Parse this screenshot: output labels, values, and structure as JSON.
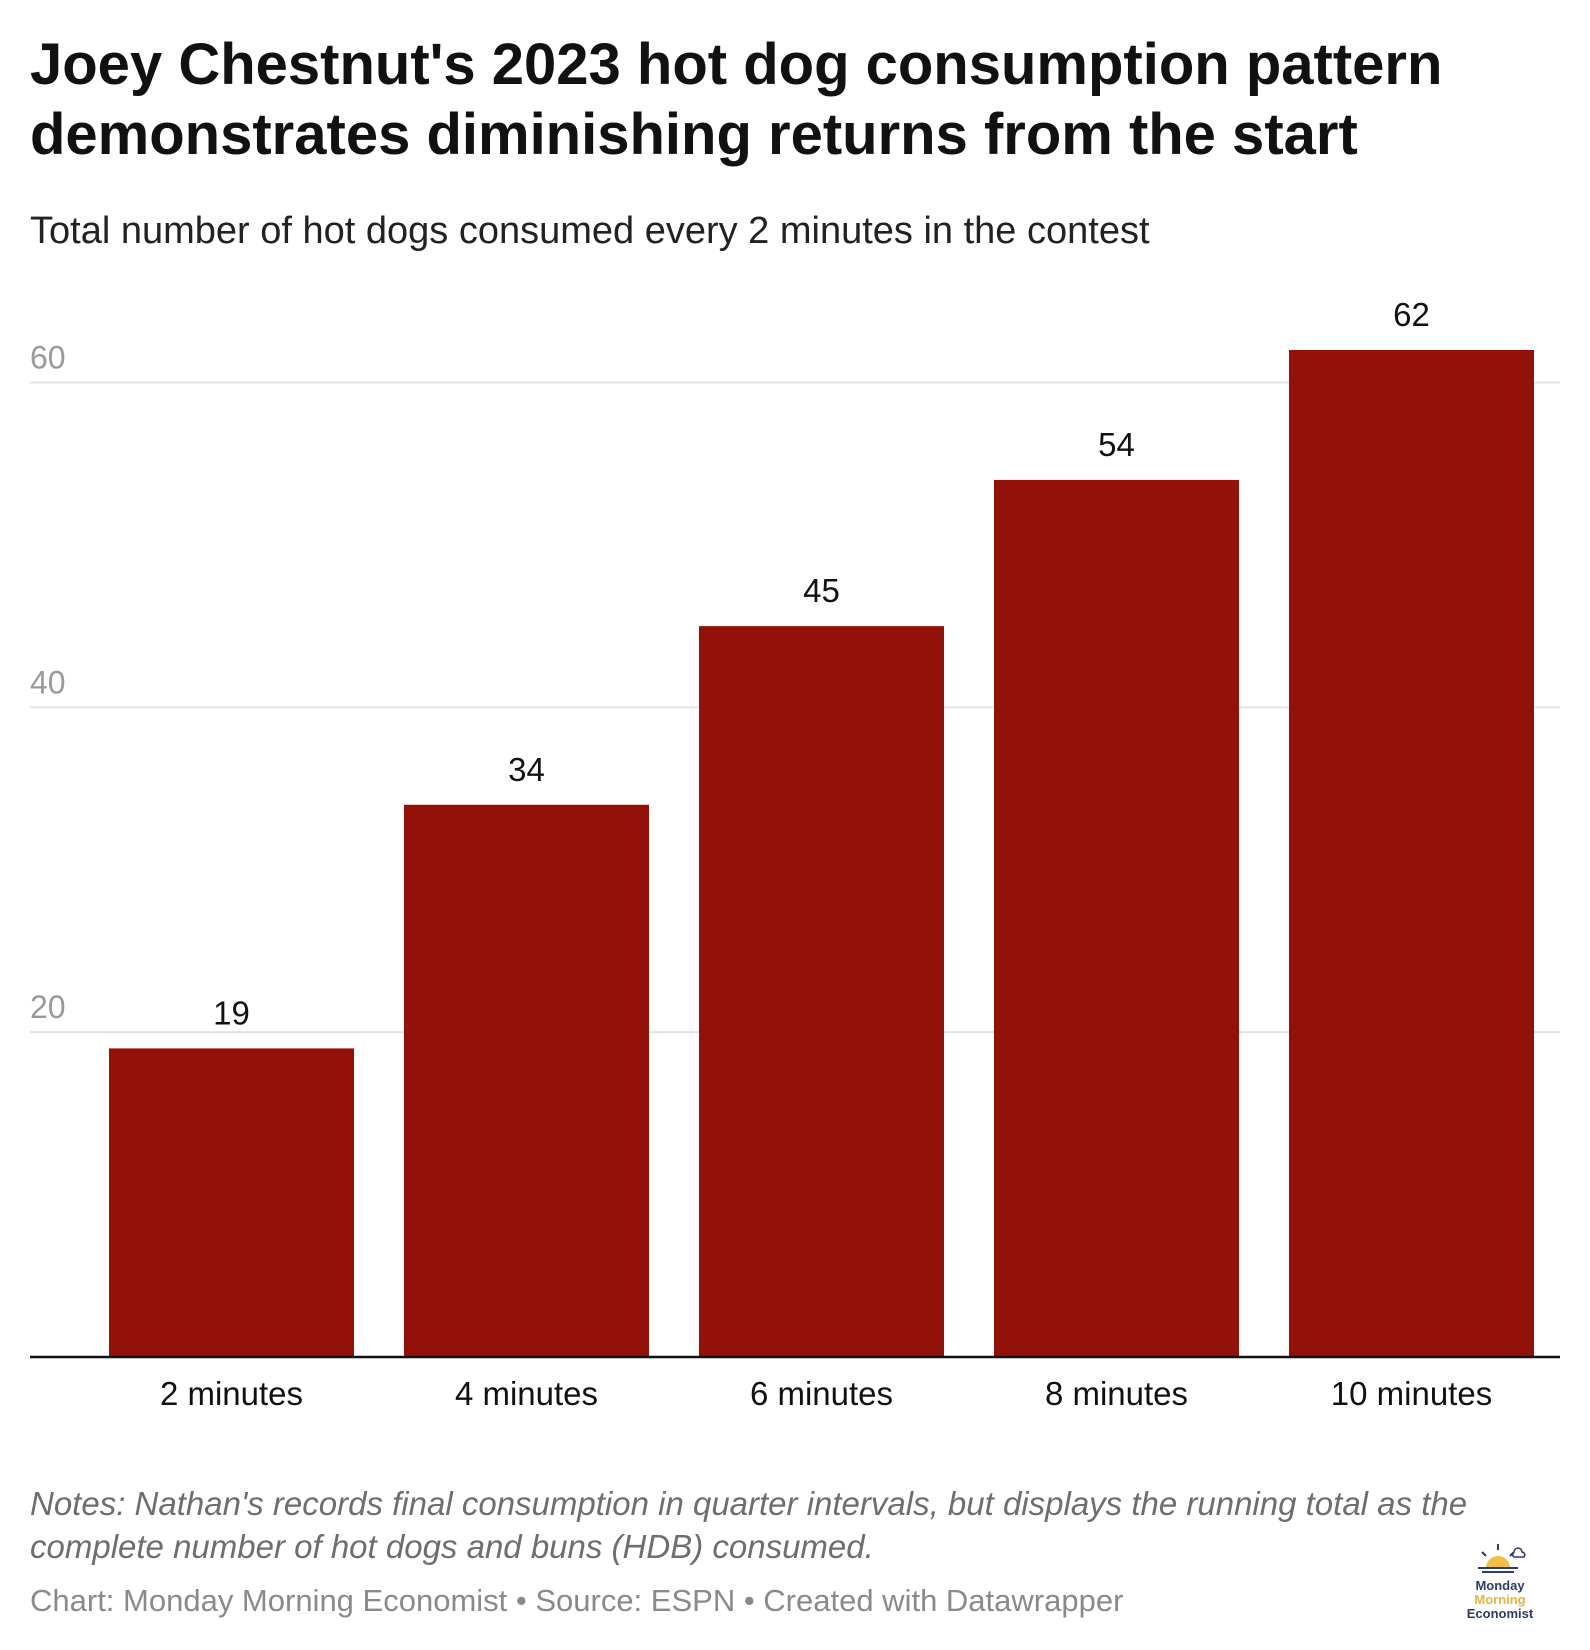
{
  "chart_data": {
    "type": "bar",
    "title": "Joey Chestnut's 2023 hot dog consumption pattern demonstrates diminishing returns from the start",
    "subtitle": "Total number of hot dogs consumed every 2 minutes in the contest",
    "categories": [
      "2 minutes",
      "4 minutes",
      "6 minutes",
      "8 minutes",
      "10 minutes"
    ],
    "values": [
      19,
      34,
      45,
      54,
      62
    ],
    "data_labels": [
      "19",
      "34",
      "45",
      "54",
      "62"
    ],
    "y_ticks": [
      20,
      40,
      60
    ],
    "ylim": [
      0,
      62
    ],
    "grid": true,
    "legend": "none",
    "bar_color": "#921109",
    "xlabel": "",
    "ylabel": ""
  },
  "notes": "Notes: Nathan's records final consumption in quarter intervals, but displays the running total as the complete number of hot dogs and buns (HDB) consumed.",
  "credits": "Chart: Monday Morning Economist • Source: ESPN • Created with Datawrapper",
  "logo": {
    "line1": "Monday",
    "line2": "Morning",
    "line3": "Economist",
    "icon": "sunrise-cloud-icon"
  }
}
